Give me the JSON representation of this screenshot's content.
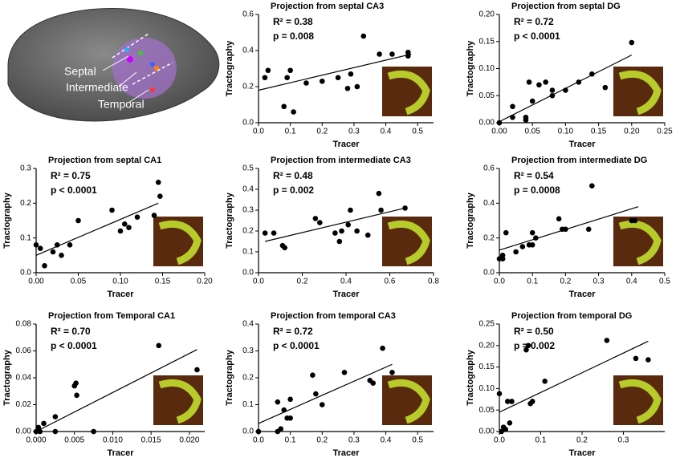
{
  "brain_labels": [
    "Septal",
    "Intermediate",
    "Temporal"
  ],
  "chart_data": [
    {
      "type": "scatter",
      "title": "Projection from septal CA3",
      "annotations": [
        "R² = 0.38",
        "p = 0.008"
      ],
      "xlabel": "Tracer",
      "ylabel": "Tractography",
      "x": [
        0.02,
        0.03,
        0.08,
        0.09,
        0.1,
        0.11,
        0.15,
        0.2,
        0.25,
        0.28,
        0.29,
        0.31,
        0.33,
        0.38,
        0.42,
        0.47,
        0.47
      ],
      "values": [
        0.25,
        0.29,
        0.09,
        0.25,
        0.29,
        0.06,
        0.22,
        0.23,
        0.25,
        0.19,
        0.27,
        0.2,
        0.48,
        0.38,
        0.38,
        0.39,
        0.37
      ],
      "fit": {
        "x": [
          0,
          0.48
        ],
        "y": [
          0.18,
          0.38
        ]
      },
      "color": "#000000",
      "xlim": [
        0,
        0.55
      ],
      "xticks": [
        {
          "value": 0,
          "label": "0.0"
        },
        0.1,
        0.2,
        0.3,
        0.4,
        0.5
      ],
      "ylim": [
        0,
        0.6
      ],
      "yticks": [
        {
          "value": 0,
          "label": "0.0"
        },
        0.2,
        0.4,
        0.6
      ]
    },
    {
      "type": "scatter",
      "title": "Projection from septal DG",
      "annotations": [
        "R² = 0.72",
        "p < 0.0001"
      ],
      "xlabel": "Tracer",
      "ylabel": "Tractography",
      "x": [
        0.0,
        0.02,
        0.02,
        0.04,
        0.04,
        0.045,
        0.05,
        0.06,
        0.07,
        0.08,
        0.08,
        0.1,
        0.12,
        0.14,
        0.16,
        0.2
      ],
      "values": [
        0.0,
        0.03,
        0.01,
        0.01,
        0.005,
        0.075,
        0.04,
        0.07,
        0.075,
        0.05,
        0.06,
        0.06,
        0.075,
        0.09,
        0.065,
        0.148
      ],
      "fit": {
        "x": [
          0,
          0.2
        ],
        "y": [
          0.002,
          0.125
        ]
      },
      "color": "#000000",
      "xlim": [
        0,
        0.25
      ],
      "xticks": [
        {
          "value": 0,
          "label": "0.00"
        },
        0.05,
        {
          "value": 0.1,
          "label": "0.10"
        },
        0.15,
        {
          "value": 0.2,
          "label": "0.20"
        },
        0.25
      ],
      "ylim": [
        0,
        0.2
      ],
      "yticks": [
        {
          "value": 0,
          "label": "0.00"
        },
        0.05,
        {
          "value": 0.1,
          "label": "0.10"
        },
        0.15,
        {
          "value": 0.2,
          "label": "0.20"
        }
      ]
    },
    {
      "type": "scatter",
      "title": "Projection from septal CA1",
      "annotations": [
        "R² = 0.75",
        "p < 0.0001"
      ],
      "xlabel": "Tracer",
      "ylabel": "Tractography",
      "x": [
        0,
        0.005,
        0.01,
        0.02,
        0.025,
        0.03,
        0.04,
        0.05,
        0.09,
        0.1,
        0.105,
        0.11,
        0.12,
        0.14,
        0.145,
        0.147
      ],
      "values": [
        0.08,
        0.07,
        0.02,
        0.06,
        0.08,
        0.05,
        0.08,
        0.15,
        0.18,
        0.12,
        0.14,
        0.13,
        0.16,
        0.165,
        0.26,
        0.22
      ],
      "fit": {
        "x": [
          0,
          0.145
        ],
        "y": [
          0.05,
          0.2
        ]
      },
      "color": "#000000",
      "xlim": [
        0,
        0.2
      ],
      "xticks": [
        {
          "value": 0,
          "label": "0.00"
        },
        0.05,
        {
          "value": 0.1,
          "label": "0.10"
        },
        0.15,
        {
          "value": 0.2,
          "label": "0.20"
        }
      ],
      "ylim": [
        0,
        0.3
      ],
      "yticks": [
        {
          "value": 0,
          "label": "0.0"
        },
        0.1,
        0.2,
        0.3
      ]
    },
    {
      "type": "scatter",
      "title": "Projection from intermediate CA3",
      "annotations": [
        "R² = 0.48",
        "p = 0.002"
      ],
      "xlabel": "Tracer",
      "ylabel": "Tractography",
      "x": [
        0.03,
        0.07,
        0.11,
        0.12,
        0.26,
        0.28,
        0.35,
        0.37,
        0.38,
        0.41,
        0.42,
        0.45,
        0.5,
        0.55,
        0.56,
        0.67
      ],
      "values": [
        0.19,
        0.19,
        0.13,
        0.12,
        0.26,
        0.24,
        0.19,
        0.15,
        0.2,
        0.23,
        0.3,
        0.2,
        0.18,
        0.38,
        0.3,
        0.31
      ],
      "fit": {
        "x": [
          0.03,
          0.67
        ],
        "y": [
          0.15,
          0.31
        ]
      },
      "color": "#000000",
      "xlim": [
        0,
        0.8
      ],
      "xticks": [
        {
          "value": 0,
          "label": "0.0"
        },
        0.2,
        0.4,
        0.6,
        0.8
      ],
      "ylim": [
        0,
        0.5
      ],
      "yticks": [
        {
          "value": 0,
          "label": "0.0"
        },
        0.1,
        0.2,
        0.3,
        0.4,
        0.5
      ]
    },
    {
      "type": "scatter",
      "title": "Projection from intermediate DG",
      "annotations": [
        "R² = 0.54",
        "p = 0.0008"
      ],
      "xlabel": "Tracer",
      "ylabel": "Tractography",
      "x": [
        0.0,
        0.01,
        0.01,
        0.02,
        0.05,
        0.07,
        0.09,
        0.1,
        0.1,
        0.11,
        0.18,
        0.19,
        0.2,
        0.27,
        0.28,
        0.4,
        0.41
      ],
      "values": [
        0.08,
        0.1,
        0.08,
        0.23,
        0.12,
        0.15,
        0.16,
        0.23,
        0.16,
        0.2,
        0.31,
        0.25,
        0.25,
        0.25,
        0.5,
        0.3,
        0.3
      ],
      "fit": {
        "x": [
          0,
          0.42
        ],
        "y": [
          0.13,
          0.38
        ]
      },
      "color": "#000000",
      "xlim": [
        0,
        0.5
      ],
      "xticks": [
        {
          "value": 0,
          "label": "0.0"
        },
        0.1,
        0.2,
        0.3,
        0.4,
        0.5
      ],
      "ylim": [
        0,
        0.6
      ],
      "yticks": [
        {
          "value": 0,
          "label": "0.0"
        },
        0.2,
        0.4,
        0.6
      ]
    },
    {
      "type": "scatter",
      "title": "Projection from Temporal CA1",
      "annotations": [
        "R² = 0.70",
        "p < 0.0001"
      ],
      "xlabel": "Tracer",
      "ylabel": "Tractography",
      "x": [
        0,
        0.0003,
        0.001,
        0.0025,
        0.0025,
        0.0005,
        0.005,
        0.0052,
        0.0053,
        0.0075,
        0.016,
        0.021
      ],
      "values": [
        0,
        0.003,
        0.006,
        0.011,
        0.0,
        0.0,
        0.034,
        0.036,
        0.027,
        0.0,
        0.064,
        0.046
      ],
      "fit": {
        "x": [
          0,
          0.021
        ],
        "y": [
          0,
          0.061
        ]
      },
      "color": "#000000",
      "xlim": [
        0,
        0.022
      ],
      "xticks": [
        {
          "value": 0,
          "label": "0.000"
        },
        0.005,
        {
          "value": 0.01,
          "label": "0.010"
        },
        0.015,
        {
          "value": 0.02,
          "label": "0.020"
        }
      ],
      "ylim": [
        0,
        0.08
      ],
      "yticks": [
        {
          "value": 0,
          "label": "0.00"
        },
        0.02,
        0.04,
        0.06,
        0.08
      ]
    },
    {
      "type": "scatter",
      "title": "Projection from temporal CA3",
      "annotations": [
        "R² = 0.72",
        "p < 0.0001"
      ],
      "xlabel": "Tracer",
      "ylabel": "Tractography",
      "x": [
        0,
        0.06,
        0.06,
        0.07,
        0.08,
        0.09,
        0.1,
        0.1,
        0.17,
        0.18,
        0.2,
        0.27,
        0.35,
        0.36,
        0.39,
        0.42
      ],
      "values": [
        0,
        0.11,
        0.0,
        0.01,
        0.08,
        0.05,
        0.12,
        0.05,
        0.21,
        0.14,
        0.1,
        0.22,
        0.19,
        0.18,
        0.31,
        0.22
      ],
      "fit": {
        "x": [
          0,
          0.42
        ],
        "y": [
          0.03,
          0.25
        ]
      },
      "color": "#000000",
      "xlim": [
        0,
        0.55
      ],
      "xticks": [
        {
          "value": 0,
          "label": "0.0"
        },
        0.1,
        0.2,
        0.3,
        0.4,
        0.5
      ],
      "ylim": [
        0,
        0.4
      ],
      "yticks": [
        {
          "value": 0,
          "label": "0.0"
        },
        0.1,
        0.2,
        0.3,
        0.4
      ]
    },
    {
      "type": "scatter",
      "title": "Projection from temporal DG",
      "annotations": [
        "R² = 0.50",
        "p = 0.002"
      ],
      "xlabel": "Tracer",
      "ylabel": "Tractography",
      "x": [
        0,
        0.005,
        0.01,
        0.015,
        0.02,
        0.025,
        0.03,
        0.065,
        0.07,
        0.075,
        0.08,
        0.11,
        0.26,
        0.33,
        0.36
      ],
      "values": [
        0.088,
        0.0,
        0.01,
        0.005,
        0.07,
        0.02,
        0.07,
        0.19,
        0.2,
        0.065,
        0.07,
        0.117,
        0.212,
        0.17,
        0.167
      ],
      "fit": {
        "x": [
          0,
          0.36
        ],
        "y": [
          0.045,
          0.21
        ]
      },
      "color": "#000000",
      "xlim": [
        0,
        0.4
      ],
      "xticks": [
        {
          "value": 0,
          "label": "0.0"
        },
        0.1,
        0.2,
        0.3
      ],
      "ylim": [
        0,
        0.25
      ],
      "yticks": [
        {
          "value": 0,
          "label": "0.00"
        },
        0.05,
        {
          "value": 0.1,
          "label": "0.10"
        },
        0.15,
        {
          "value": 0.2,
          "label": "0.20"
        },
        0.25
      ]
    }
  ]
}
